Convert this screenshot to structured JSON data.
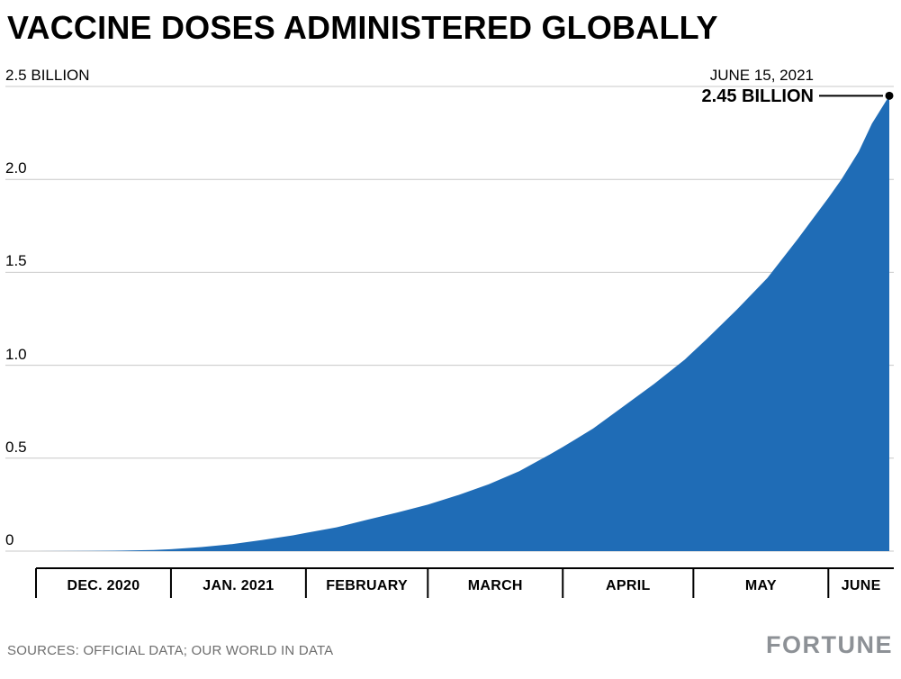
{
  "title": "VACCINE DOSES ADMINISTERED GLOBALLY",
  "footer": {
    "sources": "SOURCES: OFFICIAL DATA; OUR WORLD IN DATA",
    "logo": "FORTUNE"
  },
  "colors": {
    "area": "#1f6cb6",
    "grid": "#c8c8c8",
    "axis": "#000000",
    "annotation": "#000000",
    "footer_text": "#6e6e6e",
    "logo": "#8d9196"
  },
  "chart_data": {
    "type": "area",
    "title": "VACCINE DOSES ADMINISTERED GLOBALLY",
    "grid": true,
    "legend": false,
    "ylim": [
      0,
      2.5
    ],
    "y_ticks": [
      {
        "value": 0,
        "label": "0"
      },
      {
        "value": 0.5,
        "label": "0.5"
      },
      {
        "value": 1.0,
        "label": "1.0"
      },
      {
        "value": 1.5,
        "label": "1.5"
      },
      {
        "value": 2.0,
        "label": "2.0"
      },
      {
        "value": 2.5,
        "label": "2.5 BILLION"
      }
    ],
    "x_axis": {
      "start": "2020-12-01",
      "end": "2021-06-15",
      "months": [
        {
          "label": "DEC. 2020",
          "start": "2020-12-01"
        },
        {
          "label": "JAN. 2021",
          "start": "2021-01-01"
        },
        {
          "label": "FEBRUARY",
          "start": "2021-02-01"
        },
        {
          "label": "MARCH",
          "start": "2021-03-01"
        },
        {
          "label": "APRIL",
          "start": "2021-04-01"
        },
        {
          "label": "MAY",
          "start": "2021-05-01"
        },
        {
          "label": "JUNE",
          "start": "2021-06-01"
        }
      ]
    },
    "x": [
      "2020-12-01",
      "2020-12-13",
      "2020-12-21",
      "2020-12-28",
      "2021-01-01",
      "2021-01-08",
      "2021-01-15",
      "2021-01-22",
      "2021-01-29",
      "2021-02-01",
      "2021-02-08",
      "2021-02-15",
      "2021-02-22",
      "2021-03-01",
      "2021-03-08",
      "2021-03-15",
      "2021-03-22",
      "2021-03-29",
      "2021-04-01",
      "2021-04-08",
      "2021-04-15",
      "2021-04-22",
      "2021-04-29",
      "2021-05-04",
      "2021-05-11",
      "2021-05-18",
      "2021-05-25",
      "2021-06-01",
      "2021-06-04",
      "2021-06-08",
      "2021-06-11",
      "2021-06-15"
    ],
    "values": [
      0,
      0.001,
      0.003,
      0.006,
      0.01,
      0.022,
      0.038,
      0.06,
      0.085,
      0.098,
      0.128,
      0.168,
      0.208,
      0.25,
      0.302,
      0.36,
      0.43,
      0.52,
      0.56,
      0.66,
      0.78,
      0.9,
      1.03,
      1.14,
      1.3,
      1.47,
      1.68,
      1.9,
      2.0,
      2.15,
      2.3,
      2.45
    ],
    "annotation": {
      "date": "JUNE 15, 2021",
      "value": "2.45 BILLION",
      "point": {
        "x": "2021-06-15",
        "y": 2.45
      }
    }
  }
}
